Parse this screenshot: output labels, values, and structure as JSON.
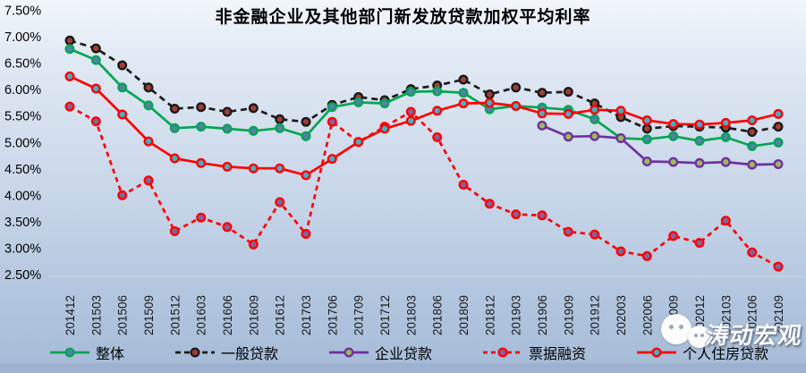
{
  "title": "非金融企业及其他部门新发放贷款加权平均利率",
  "watermark": {
    "icon": "wechat-icon",
    "text": "涛动宏观"
  },
  "chart_data": {
    "type": "line",
    "title": "非金融企业及其他部门新发放贷款加权平均利率",
    "grid": false,
    "legend_position": "bottom",
    "y_axis": {
      "min": 2.5,
      "max": 7.5,
      "step": 0.5,
      "format": "percent",
      "tick_labels": [
        "7.50%",
        "7.00%",
        "6.50%",
        "6.00%",
        "5.50%",
        "5.00%",
        "4.50%",
        "4.00%",
        "3.50%",
        "3.00%",
        "2.50%"
      ]
    },
    "x_axis": {
      "categories": [
        "201412",
        "201503",
        "201506",
        "201509",
        "201512",
        "201603",
        "201606",
        "201609",
        "201612",
        "201703",
        "201706",
        "201709",
        "201712",
        "201803",
        "201806",
        "201809",
        "201812",
        "201903",
        "201906",
        "201909",
        "201912",
        "202003",
        "202006",
        "202009",
        "202012",
        "202103",
        "202106",
        "202109"
      ]
    },
    "series": [
      {
        "id": "bill-financing",
        "name": "票据融资",
        "line_style": "dashed",
        "line_color": "#FE0000",
        "marker_fill": "#8064A2",
        "marker_ring": "#FE0000",
        "values": [
          5.68,
          5.4,
          4.0,
          4.28,
          3.32,
          3.58,
          3.4,
          3.07,
          3.87,
          3.27,
          5.39,
          5.01,
          5.3,
          5.58,
          5.1,
          4.2,
          3.84,
          3.64,
          3.62,
          3.31,
          3.26,
          2.94,
          2.85,
          3.23,
          3.1,
          3.52,
          2.92,
          2.65
        ]
      },
      {
        "id": "general-loans",
        "name": "一般贷款",
        "line_style": "dashed",
        "line_color": "#1A1A1A",
        "marker_fill": "#A33E35",
        "marker_ring": "#1A1A1A",
        "values": [
          6.93,
          6.78,
          6.46,
          6.04,
          5.64,
          5.67,
          5.58,
          5.65,
          5.44,
          5.39,
          5.71,
          5.86,
          5.8,
          6.01,
          6.08,
          6.19,
          5.91,
          6.04,
          5.94,
          5.96,
          5.74,
          5.48,
          5.26,
          5.31,
          5.3,
          5.28,
          5.2,
          5.3
        ]
      },
      {
        "id": "overall",
        "name": "整体",
        "line_style": "solid",
        "line_color": "#00A651",
        "marker_fill": "#5B7CB0",
        "marker_ring": "#00A651",
        "values": [
          6.77,
          6.56,
          6.04,
          5.7,
          5.27,
          5.3,
          5.26,
          5.22,
          5.27,
          5.12,
          5.67,
          5.76,
          5.74,
          5.96,
          5.97,
          5.94,
          5.63,
          5.69,
          5.66,
          5.62,
          5.44,
          5.08,
          5.06,
          5.12,
          5.03,
          5.1,
          4.93,
          5.0
        ]
      },
      {
        "id": "corporate-loans",
        "name": "企业贷款",
        "line_style": "solid",
        "line_color": "#7030A0",
        "marker_fill": "#9BBB59",
        "marker_ring": "#7030A0",
        "values": [
          null,
          null,
          null,
          null,
          null,
          null,
          null,
          null,
          null,
          null,
          null,
          null,
          null,
          null,
          null,
          null,
          null,
          null,
          5.32,
          5.11,
          5.12,
          5.08,
          4.64,
          4.63,
          4.61,
          4.63,
          4.58,
          4.59
        ]
      },
      {
        "id": "personal-housing-loans",
        "name": "个人住房贷款",
        "line_style": "solid",
        "line_color": "#FE0000",
        "marker_fill": "#4BACC6",
        "marker_ring": "#FE0000",
        "values": [
          6.25,
          6.02,
          5.53,
          5.02,
          4.7,
          4.61,
          4.54,
          4.51,
          4.51,
          4.38,
          4.69,
          5.01,
          5.26,
          5.41,
          5.6,
          5.74,
          5.75,
          5.69,
          5.55,
          5.54,
          5.62,
          5.6,
          5.42,
          5.35,
          5.34,
          5.37,
          5.42,
          5.54
        ]
      }
    ],
    "legend_order": [
      "overall",
      "general-loans",
      "corporate-loans",
      "bill-financing",
      "personal-housing-loans"
    ]
  }
}
